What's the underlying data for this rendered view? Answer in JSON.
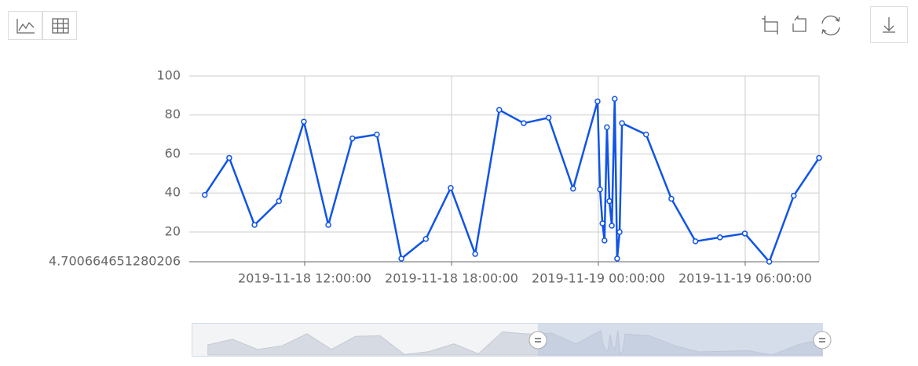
{
  "chart_data": {
    "type": "line",
    "color": "#1154e6",
    "grid": true,
    "x": [
      "2019-11-18 07:55:00",
      "2019-11-18 08:55:00",
      "2019-11-18 09:57:00",
      "2019-11-18 10:57:00",
      "2019-11-18 11:58:00",
      "2019-11-18 12:58:00",
      "2019-11-18 13:57:00",
      "2019-11-18 14:57:00",
      "2019-11-18 15:57:00",
      "2019-11-18 16:57:00",
      "2019-11-18 17:58:00",
      "2019-11-18 18:58:00",
      "2019-11-18 19:57:00",
      "2019-11-18 20:57:00",
      "2019-11-18 21:58:00",
      "2019-11-18 22:58:00",
      "2019-11-18 23:58:00",
      "2019-11-19 00:04:00",
      "2019-11-19 00:10:00",
      "2019-11-19 00:15:00",
      "2019-11-19 00:21:00",
      "2019-11-19 00:27:00",
      "2019-11-19 00:33:00",
      "2019-11-19 00:40:00",
      "2019-11-19 00:46:00",
      "2019-11-19 00:52:00",
      "2019-11-19 00:58:00",
      "2019-11-19 01:57:00",
      "2019-11-19 02:59:00",
      "2019-11-19 03:58:00",
      "2019-11-19 04:58:00",
      "2019-11-19 05:59:00",
      "2019-11-19 06:59:00",
      "2019-11-19 07:59:00",
      "2019-11-19 09:01:00"
    ],
    "values": [
      39,
      58,
      23.6,
      35.8,
      76.6,
      23.6,
      68,
      70,
      6.3,
      16.4,
      42.6,
      8.7,
      82.6,
      75.8,
      78.6,
      42.2,
      87,
      41.8,
      24.4,
      15.6,
      73.7,
      35.8,
      23.2,
      88.3,
      6.3,
      20,
      75.8,
      70,
      37,
      15.2,
      17.2,
      19.2,
      4.7,
      38.6,
      58
    ],
    "xlim": [
      "2019-11-18 07:17:00",
      "2019-11-19 09:01:00"
    ],
    "xticks": [
      "2019-11-18 12:00:00",
      "2019-11-18 18:00:00",
      "2019-11-19 00:00:00",
      "2019-11-19 06:00:00"
    ],
    "ylim": [
      4.700664651280206,
      100
    ],
    "yticks": [
      4.700664651280206,
      20,
      40,
      60,
      80,
      100
    ]
  }
}
